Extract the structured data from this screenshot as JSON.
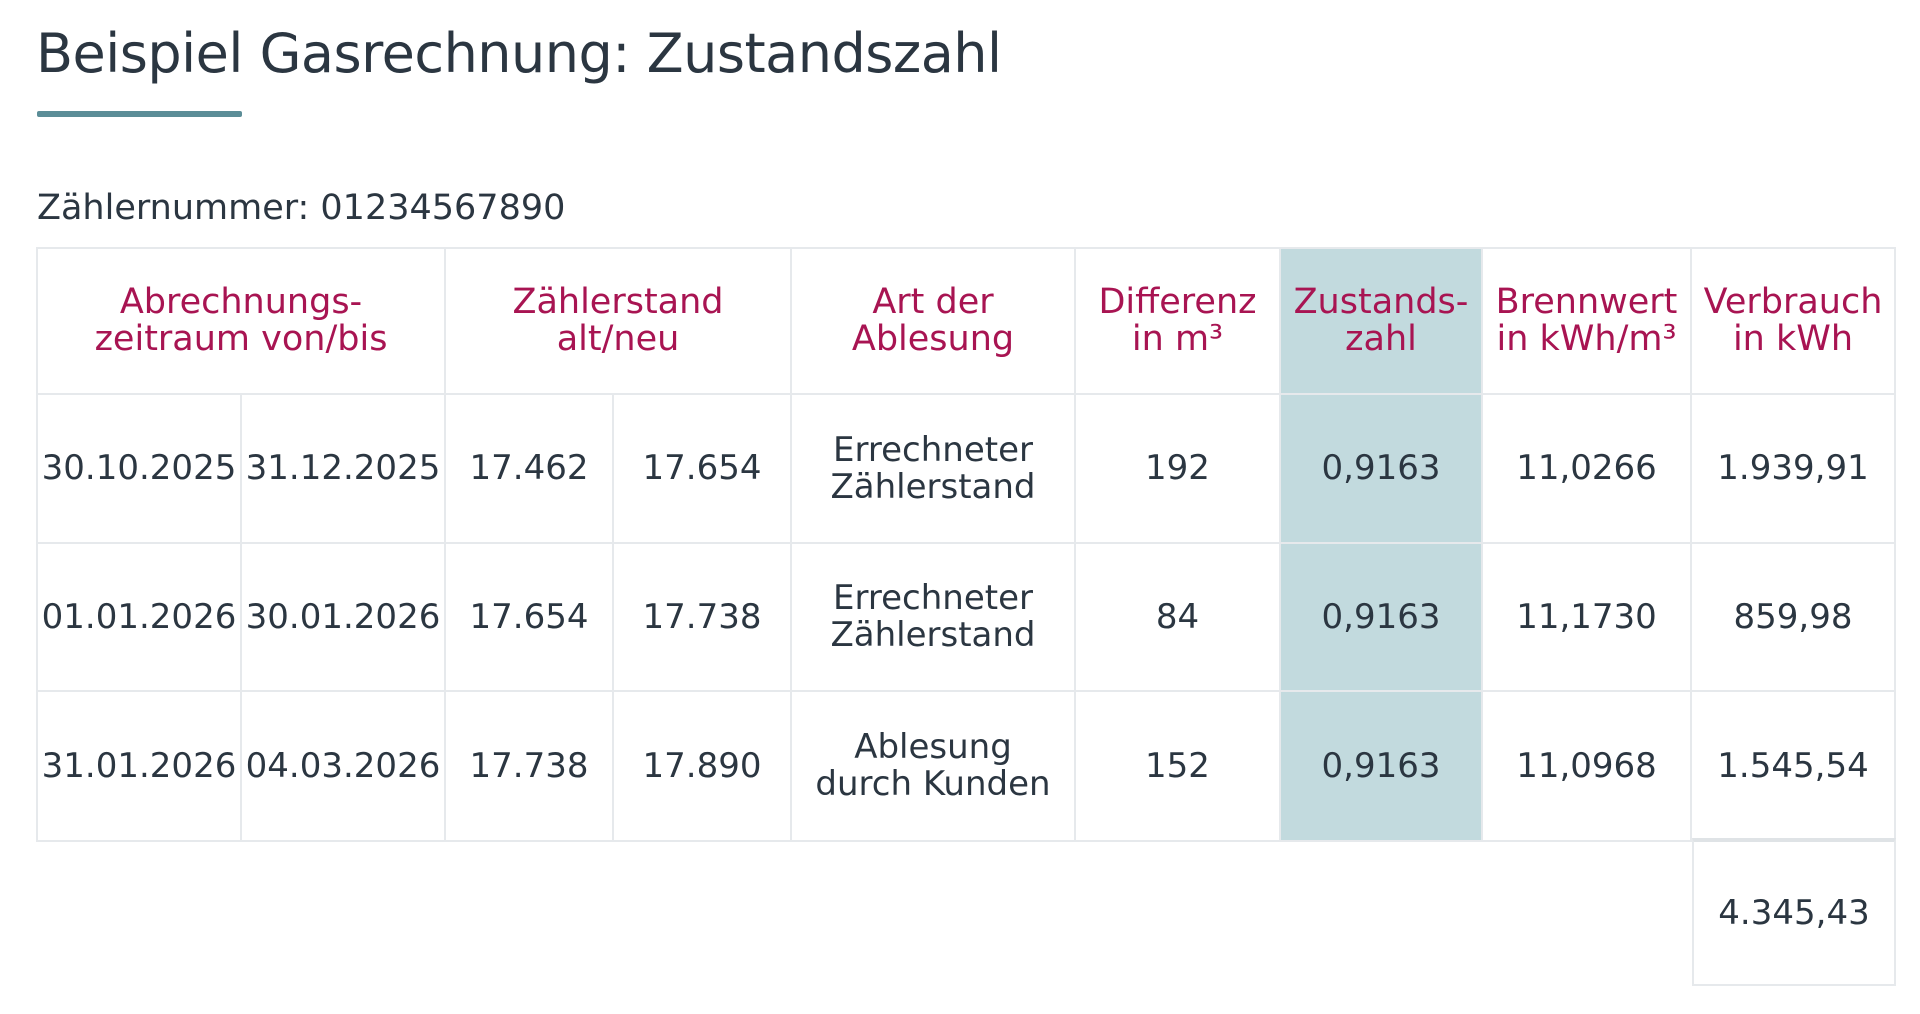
{
  "title": "Beispiel Gasrechnung: Zustandszahl",
  "meter_label": "Zählernummer: 01234567890",
  "headers": {
    "period": [
      "Abrechnungs-",
      "zeitraum von/bis"
    ],
    "reading": [
      "Zählerstand",
      "alt/neu"
    ],
    "type": [
      "Art der",
      "Ablesung"
    ],
    "difference": [
      "Differenz",
      "in m³"
    ],
    "state_number": [
      "Zustands-",
      "zahl"
    ],
    "calorific": [
      "Brennwert",
      "in kWh/m³"
    ],
    "consumption": [
      "Verbrauch",
      "in kWh"
    ]
  },
  "rows": [
    {
      "from": "30.10.2025",
      "to": "31.12.2025",
      "old": "17.462",
      "new": "17.654",
      "type": [
        "Errechneter",
        "Zählerstand"
      ],
      "difference": "192",
      "state_number": "0,9163",
      "calorific": "11,0266",
      "consumption": "1.939,91"
    },
    {
      "from": "01.01.2026",
      "to": "30.01.2026",
      "old": "17.654",
      "new": "17.738",
      "type": [
        "Errechneter",
        "Zählerstand"
      ],
      "difference": "84",
      "state_number": "0,9163",
      "calorific": "11,1730",
      "consumption": "859,98"
    },
    {
      "from": "31.01.2026",
      "to": "04.03.2026",
      "old": "17.738",
      "new": "17.890",
      "type": [
        "Ablesung",
        "durch Kunden"
      ],
      "difference": "152",
      "state_number": "0,9163",
      "calorific": "11,0968",
      "consumption": "1.545,54"
    }
  ],
  "total": "4.345,43",
  "colors": {
    "header_text": "#a81452",
    "highlight_column": "#c2dade",
    "underline_accent": "#5b8d97"
  }
}
